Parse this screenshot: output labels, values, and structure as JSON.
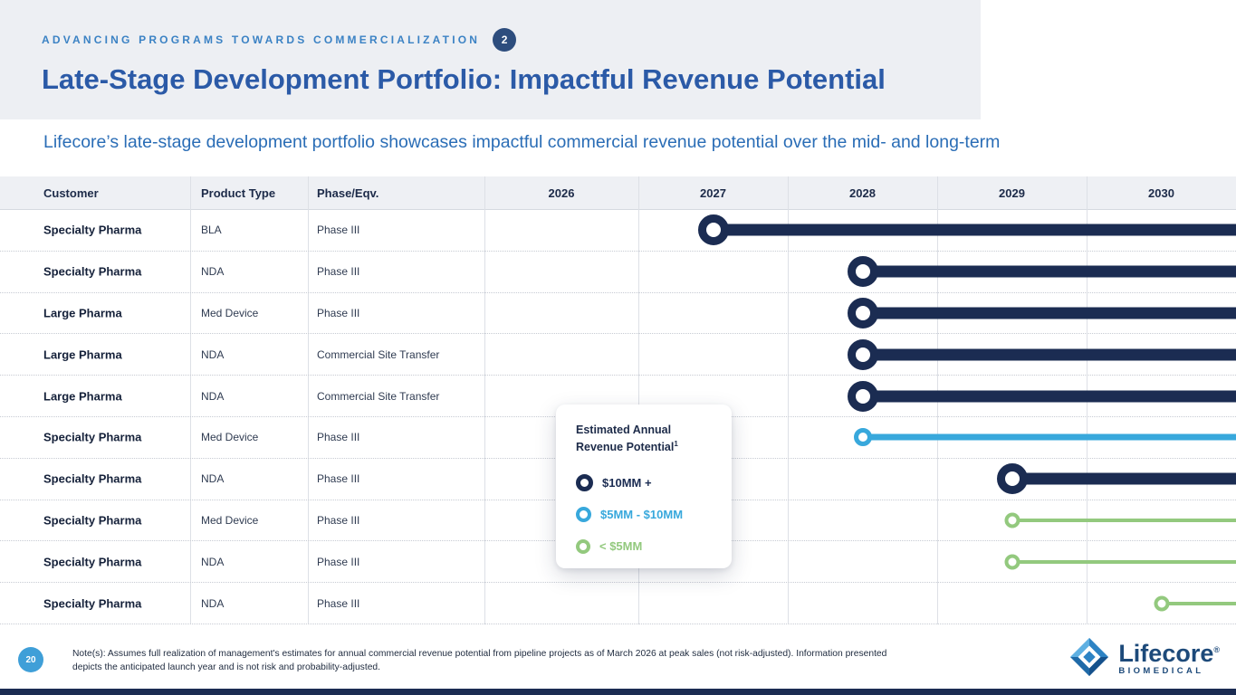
{
  "slide": {
    "eyebrow": "ADVANCING PROGRAMS TOWARDS COMMERCIALIZATION",
    "eyebrow_badge": "2",
    "title": "Late-Stage Development Portfolio: Impactful Revenue Potential",
    "subtitle": "Lifecore’s late-stage development portfolio showcases impactful commercial revenue potential over the mid- and long-term"
  },
  "colors": {
    "navy": "#1b2c52",
    "cyan": "#38a8dc",
    "green": "#93c97e",
    "title_blue": "#2b5aa7",
    "subtitle_blue": "#2a6db6",
    "eyebrow_blue": "#3b82c4",
    "badge_navy": "#2d4d7d",
    "page_badge_blue": "#3f9fd8",
    "header_gray": "#edeff3",
    "logo_navy": "#1d4a7a"
  },
  "table": {
    "headers": [
      "Customer",
      "Product Type",
      "Phase/Eqv."
    ],
    "years": [
      "2026",
      "2027",
      "2028",
      "2029",
      "2030"
    ]
  },
  "legend": {
    "title_line1": "Estimated Annual",
    "title_line2": "Revenue Potential",
    "title_sup": "1",
    "items": [
      {
        "label": "$10MM +",
        "color": "#1b2c52"
      },
      {
        "label": "$5MM - $10MM",
        "color": "#38a8dc"
      },
      {
        "label": "< $5MM",
        "color": "#93c97e"
      }
    ]
  },
  "chart_data": {
    "type": "gantt",
    "title": "Late-Stage Development Portfolio: Impactful Revenue Potential",
    "x_ticks": [
      "2026",
      "2027",
      "2028",
      "2029",
      "2030"
    ],
    "x_range": [
      2026,
      2030
    ],
    "legend_title": "Estimated Annual Revenue Potential",
    "legend_entries": [
      "$10MM +",
      "$5MM - $10MM",
      "< $5MM"
    ],
    "rows": [
      {
        "customer": "Specialty Pharma",
        "product_type": "BLA",
        "phase": "Phase III",
        "launch_year": 2027,
        "revenue_tier": "$10MM +"
      },
      {
        "customer": "Specialty Pharma",
        "product_type": "NDA",
        "phase": "Phase III",
        "launch_year": 2028,
        "revenue_tier": "$10MM +"
      },
      {
        "customer": "Large Pharma",
        "product_type": "Med Device",
        "phase": "Phase III",
        "launch_year": 2028,
        "revenue_tier": "$10MM +"
      },
      {
        "customer": "Large Pharma",
        "product_type": "NDA",
        "phase": "Commercial Site Transfer",
        "launch_year": 2028,
        "revenue_tier": "$10MM +"
      },
      {
        "customer": "Large Pharma",
        "product_type": "NDA",
        "phase": "Commercial Site Transfer",
        "launch_year": 2028,
        "revenue_tier": "$10MM +"
      },
      {
        "customer": "Specialty Pharma",
        "product_type": "Med Device",
        "phase": "Phase III",
        "launch_year": 2028,
        "revenue_tier": "$5MM - $10MM"
      },
      {
        "customer": "Specialty Pharma",
        "product_type": "NDA",
        "phase": "Phase III",
        "launch_year": 2029,
        "revenue_tier": "$10MM +"
      },
      {
        "customer": "Specialty Pharma",
        "product_type": "Med Device",
        "phase": "Phase III",
        "launch_year": 2029,
        "revenue_tier": "< $5MM"
      },
      {
        "customer": "Specialty Pharma",
        "product_type": "NDA",
        "phase": "Phase III",
        "launch_year": 2029,
        "revenue_tier": "< $5MM"
      },
      {
        "customer": "Specialty Pharma",
        "product_type": "NDA",
        "phase": "Phase III",
        "launch_year": 2030,
        "revenue_tier": "< $5MM"
      }
    ]
  },
  "footer": {
    "page_number": "20",
    "note_line1": "Note(s): Assumes full realization of management's estimates for annual commercial revenue potential from pipeline projects as of March 2026 at peak sales (not risk-adjusted). Information presented",
    "note_line2": "depicts the anticipated launch year and is not risk and probability-adjusted.",
    "logo_text": "Lifecore",
    "logo_reg": "®",
    "logo_subtext": "BIOMEDICAL"
  }
}
